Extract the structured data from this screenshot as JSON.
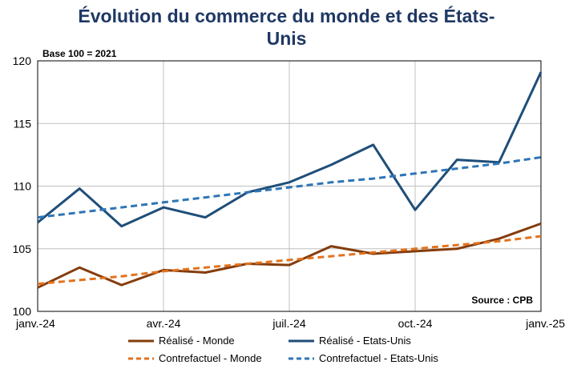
{
  "chart_data": {
    "type": "line",
    "title_line1": "Évolution du commerce du monde et des États-",
    "title_line2": "Unis",
    "base_note": "Base 100 = 2021",
    "source": "Source : CPB",
    "x_tick_labels": [
      "janv.-24",
      "avr.-24",
      "juil.-24",
      "oct.-24",
      "janv.-25"
    ],
    "x_tick_index": [
      0,
      3,
      6,
      9,
      12
    ],
    "y_ticks": [
      100,
      105,
      110,
      115,
      120
    ],
    "ylim": [
      100,
      120
    ],
    "grid": true,
    "legend_placement": "bottom",
    "x": [
      "janv.-24",
      "févr.-24",
      "mars-24",
      "avr.-24",
      "mai-24",
      "juin-24",
      "juil.-24",
      "août-24",
      "sept.-24",
      "oct.-24",
      "nov.-24",
      "déc.-24",
      "janv.-25"
    ],
    "series": [
      {
        "name": "Réalisé - Monde",
        "color": "#843c0c",
        "style": "solid",
        "values": [
          101.9,
          103.5,
          102.1,
          103.3,
          103.1,
          103.8,
          103.7,
          105.2,
          104.6,
          104.8,
          105.0,
          105.8,
          107.0
        ]
      },
      {
        "name": "Réalisé - Etats-Unis",
        "color": "#1f4e79",
        "style": "solid",
        "values": [
          107.1,
          109.8,
          106.8,
          108.3,
          107.5,
          109.5,
          110.3,
          111.7,
          113.3,
          108.1,
          112.1,
          111.9,
          119.1
        ]
      },
      {
        "name": "Contrefactuel - Monde",
        "color": "#e2731e",
        "style": "dashed",
        "values": [
          102.2,
          102.5,
          102.8,
          103.2,
          103.5,
          103.8,
          104.1,
          104.4,
          104.7,
          105.0,
          105.3,
          105.6,
          106.0
        ]
      },
      {
        "name": "Contrefactuel - Etats-Unis",
        "color": "#2e75b6",
        "style": "dashed",
        "values": [
          107.5,
          107.9,
          108.3,
          108.7,
          109.1,
          109.5,
          109.9,
          110.3,
          110.6,
          111.0,
          111.4,
          111.8,
          112.3
        ]
      }
    ]
  }
}
